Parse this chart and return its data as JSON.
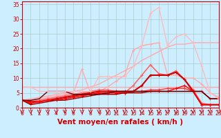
{
  "background_color": "#cceeff",
  "grid_color": "#aacccc",
  "xlabel": "Vent moyen/en rafales ( km/h )",
  "xlabel_color": "#cc0000",
  "xlim": [
    0,
    23
  ],
  "ylim": [
    0,
    36
  ],
  "yticks": [
    0,
    5,
    10,
    15,
    20,
    25,
    30,
    35
  ],
  "xticks": [
    0,
    1,
    2,
    3,
    4,
    5,
    6,
    7,
    8,
    9,
    10,
    11,
    12,
    13,
    14,
    15,
    16,
    17,
    18,
    19,
    20,
    21,
    22,
    23
  ],
  "lines": [
    {
      "x": [
        0,
        1,
        2,
        3,
        4,
        5,
        6,
        7,
        8,
        9,
        10,
        11,
        12,
        13,
        14,
        15,
        16,
        17,
        18,
        19,
        20,
        21,
        22,
        23
      ],
      "y": [
        7,
        7,
        7,
        7,
        7,
        7,
        7,
        7,
        7,
        7,
        7,
        7,
        7,
        7,
        7,
        7,
        7,
        7,
        7,
        7,
        7,
        7,
        7,
        7
      ],
      "color": "#ffaaaa",
      "lw": 1.0,
      "marker": null,
      "ms": 0
    },
    {
      "x": [
        0,
        1,
        2,
        3,
        4,
        5,
        6,
        7,
        8,
        9,
        10,
        11,
        12,
        13,
        14,
        15,
        16,
        17,
        18,
        19,
        20,
        21,
        22,
        23
      ],
      "y": [
        2.5,
        3.0,
        3.5,
        4.0,
        4.5,
        5.0,
        5.5,
        6.0,
        7.0,
        8.0,
        9.5,
        11.0,
        12.5,
        14.0,
        16.0,
        17.5,
        19.0,
        20.5,
        21.5,
        21.5,
        22.0,
        22.0,
        22.0,
        22.0
      ],
      "color": "#ffaaaa",
      "lw": 1.0,
      "marker": null,
      "ms": 0
    },
    {
      "comment": "light pink with markers - peaks at x=7 ~13, x=8 ~5, then rises to x=13~19, x=14~21, x=16~22, drops to x=17~11, x=18~11, x=19~10, x=20~10, x=21~8, x=22~5, x=23~3.5",
      "x": [
        0,
        1,
        2,
        3,
        4,
        5,
        6,
        7,
        8,
        9,
        10,
        11,
        12,
        13,
        14,
        15,
        16,
        17,
        18,
        19,
        20,
        21,
        22,
        23
      ],
      "y": [
        2.5,
        2.5,
        3.0,
        3.5,
        4.0,
        4.5,
        5.0,
        13.0,
        5.0,
        5.5,
        7.0,
        9.0,
        11.0,
        19.5,
        21.0,
        21.5,
        22.0,
        11.0,
        11.0,
        10.0,
        10.0,
        8.0,
        5.0,
        3.5
      ],
      "color": "#ffaaaa",
      "lw": 1.0,
      "marker": "+",
      "ms": 3
    },
    {
      "x": [
        0,
        1,
        2,
        3,
        4,
        5,
        6,
        7,
        8,
        9,
        10,
        11,
        12,
        13,
        14,
        15,
        16,
        17,
        18,
        19,
        20,
        21,
        22,
        23
      ],
      "y": [
        2.5,
        2.0,
        2.5,
        3.0,
        3.5,
        4.0,
        4.5,
        5.0,
        5.5,
        6.0,
        6.0,
        5.5,
        5.0,
        7.5,
        11.0,
        14.5,
        11.5,
        11.0,
        12.5,
        9.5,
        6.0,
        1.5,
        1.0,
        1.0
      ],
      "color": "#ff6666",
      "lw": 1.2,
      "marker": "+",
      "ms": 3
    },
    {
      "x": [
        0,
        1,
        2,
        3,
        4,
        5,
        6,
        7,
        8,
        9,
        10,
        11,
        12,
        13,
        14,
        15,
        16,
        17,
        18,
        19,
        20,
        21,
        22,
        23
      ],
      "y": [
        2.5,
        2.0,
        2.0,
        2.5,
        3.0,
        3.5,
        4.0,
        4.5,
        5.0,
        5.5,
        5.5,
        5.5,
        5.5,
        5.5,
        7.5,
        11.0,
        11.0,
        11.0,
        12.0,
        9.5,
        5.5,
        1.0,
        1.0,
        1.0
      ],
      "color": "#cc0000",
      "lw": 1.5,
      "marker": "+",
      "ms": 3
    },
    {
      "x": [
        0,
        1,
        2,
        3,
        4,
        5,
        6,
        7,
        8,
        9,
        10,
        11,
        12,
        13,
        14,
        15,
        16,
        17,
        18,
        19,
        20,
        21,
        22,
        23
      ],
      "y": [
        2.5,
        1.5,
        2.0,
        2.5,
        2.5,
        3.0,
        3.5,
        4.0,
        4.5,
        5.0,
        5.0,
        5.0,
        5.0,
        5.5,
        5.5,
        6.0,
        6.0,
        6.5,
        6.5,
        6.5,
        5.5,
        5.5,
        3.0,
        3.0
      ],
      "color": "#ff3333",
      "lw": 1.0,
      "marker": "+",
      "ms": 3
    },
    {
      "x": [
        0,
        1,
        2,
        3,
        4,
        5,
        6,
        7,
        8,
        9,
        10,
        11,
        12,
        13,
        14,
        15,
        16,
        17,
        18,
        19,
        20,
        21,
        22,
        23
      ],
      "y": [
        2.5,
        1.5,
        2.0,
        2.5,
        2.5,
        3.0,
        3.5,
        4.0,
        4.5,
        5.0,
        5.0,
        5.0,
        5.0,
        5.5,
        5.5,
        5.5,
        5.5,
        5.5,
        6.5,
        7.5,
        5.5,
        1.0,
        1.0,
        1.0
      ],
      "color": "#ff0000",
      "lw": 1.0,
      "marker": "+",
      "ms": 3
    },
    {
      "x": [
        0,
        1,
        2,
        3,
        4,
        5,
        6,
        7,
        8,
        9,
        10,
        11,
        12,
        13,
        14,
        15,
        16,
        17,
        18,
        19,
        20,
        21,
        22,
        23
      ],
      "y": [
        2.5,
        1.0,
        1.5,
        2.0,
        2.5,
        2.5,
        3.0,
        3.5,
        4.0,
        4.5,
        4.5,
        4.5,
        5.0,
        5.0,
        5.0,
        5.5,
        5.5,
        5.5,
        5.5,
        5.5,
        5.5,
        5.5,
        3.0,
        3.0
      ],
      "color": "#990000",
      "lw": 1.0,
      "marker": null,
      "ms": 0
    },
    {
      "x": [
        0,
        1,
        2,
        3,
        4,
        5,
        6,
        7,
        8,
        9,
        10,
        11,
        12,
        13,
        14,
        15,
        16,
        17,
        18,
        19,
        20,
        21,
        22,
        23
      ],
      "y": [
        2.5,
        2.5,
        3.0,
        5.5,
        5.5,
        5.5,
        4.5,
        4.5,
        4.5,
        4.5,
        5.0,
        5.5,
        5.5,
        5.5,
        5.5,
        5.5,
        5.5,
        5.5,
        5.5,
        5.5,
        5.5,
        5.5,
        3.0,
        3.0
      ],
      "color": "#660000",
      "lw": 1.0,
      "marker": null,
      "ms": 0
    },
    {
      "x": [
        0,
        1,
        2,
        3,
        4,
        5,
        6,
        7,
        8,
        9,
        10,
        11,
        12,
        13,
        14,
        15,
        16,
        17,
        18,
        19,
        20,
        21,
        22,
        23
      ],
      "y": [
        7.0,
        7.0,
        5.5,
        5.5,
        5.5,
        5.5,
        5.5,
        5.5,
        5.5,
        10.5,
        10.5,
        10.5,
        10.5,
        14.0,
        21.0,
        32.0,
        34.0,
        21.0,
        24.0,
        25.0,
        22.0,
        14.0,
        5.0,
        3.0
      ],
      "color": "#ffbbbb",
      "lw": 1.0,
      "marker": "+",
      "ms": 3
    }
  ],
  "tick_color": "#cc0000",
  "tick_fontsize": 5.5,
  "xlabel_fontsize": 7.5
}
